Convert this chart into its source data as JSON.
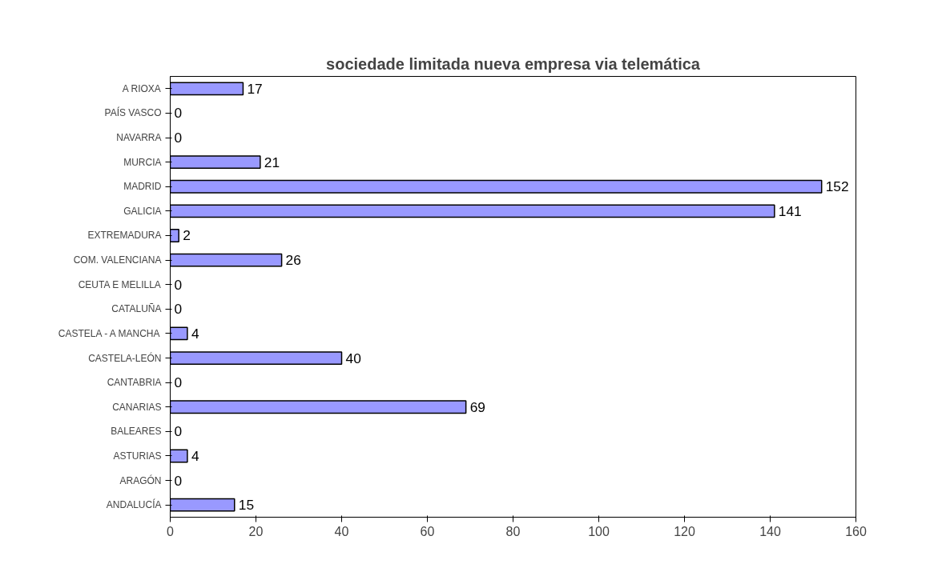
{
  "chart_data": {
    "type": "bar",
    "orientation": "horizontal",
    "title": "sociedade limitada nueva empresa via telemática",
    "categories": [
      "A RIOXA",
      "PAÍS VASCO",
      "NAVARRA",
      "MURCIA",
      "MADRID",
      "GALICIA",
      "EXTREMADURA",
      "COM. VALENCIANA",
      "CEUTA E MELILLA",
      "CATALUÑA",
      "CASTELA - A MANCHA",
      "CASTELA-LEÓN",
      "CANTABRIA",
      "CANARIAS",
      "BALEARES",
      "ASTURIAS",
      "ARAGÓN",
      "ANDALUCÍA"
    ],
    "values": [
      17,
      0,
      0,
      21,
      152,
      141,
      2,
      26,
      0,
      0,
      4,
      40,
      0,
      69,
      0,
      4,
      0,
      15
    ],
    "color": "#9999ff",
    "xlim": [
      0,
      160
    ],
    "xticks": [
      0,
      20,
      40,
      60,
      80,
      100,
      120,
      140,
      160
    ],
    "grid": false,
    "data_labels": true
  }
}
